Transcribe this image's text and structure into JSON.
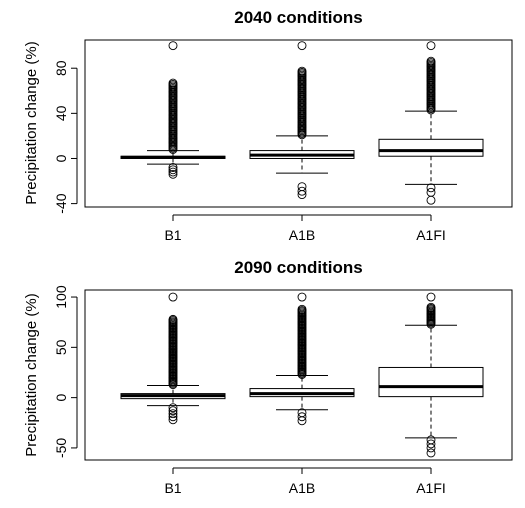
{
  "chart_data": [
    {
      "type": "boxplot",
      "title": "2040 conditions",
      "xlabel": "",
      "ylabel": "Precipitation change (%)",
      "categories": [
        "B1",
        "A1B",
        "A1FI"
      ],
      "ylim": [
        -43,
        105
      ],
      "yticks": [
        -40,
        0,
        40,
        80
      ],
      "yticklabels": [
        "-40",
        "0",
        "40",
        "80"
      ],
      "boxes": [
        {
          "label": "B1",
          "whisker_low": -5,
          "q1": 0,
          "median": 1,
          "q3": 2,
          "whisker_high": 7,
          "outliers_high_range": [
            8,
            67
          ],
          "outliers_low": [
            -8,
            -10,
            -12,
            -14
          ],
          "outlier_max": 100
        },
        {
          "label": "A1B",
          "whisker_low": -13,
          "q1": 0,
          "median": 3,
          "q3": 7,
          "whisker_high": 20,
          "outliers_high_range": [
            21,
            78
          ],
          "outliers_low": [
            -25,
            -29,
            -32
          ],
          "outlier_max": 100
        },
        {
          "label": "A1FI",
          "whisker_low": -23,
          "q1": 2,
          "median": 7,
          "q3": 17,
          "whisker_high": 42,
          "outliers_high_range": [
            43,
            87
          ],
          "outliers_low": [
            -26,
            -30,
            -37
          ],
          "outlier_max": 100
        }
      ]
    },
    {
      "type": "boxplot",
      "title": "2090 conditions",
      "xlabel": "",
      "ylabel": "Precipitation change (%)",
      "categories": [
        "B1",
        "A1B",
        "A1FI"
      ],
      "ylim": [
        -62,
        107
      ],
      "yticks": [
        -50,
        0,
        50,
        100
      ],
      "yticklabels": [
        "-50",
        "0",
        "50",
        "100"
      ],
      "boxes": [
        {
          "label": "B1",
          "whisker_low": -8,
          "q1": -1,
          "median": 2,
          "q3": 4,
          "whisker_high": 12,
          "outliers_high_range": [
            13,
            78
          ],
          "outliers_low": [
            -10,
            -13,
            -16,
            -19,
            -22
          ],
          "outlier_max": 100
        },
        {
          "label": "A1B",
          "whisker_low": -12,
          "q1": 1,
          "median": 4,
          "q3": 9,
          "whisker_high": 22,
          "outliers_high_range": [
            23,
            88
          ],
          "outliers_low": [
            -15,
            -19,
            -23
          ],
          "outlier_max": 100
        },
        {
          "label": "A1FI",
          "whisker_low": -40,
          "q1": 1,
          "median": 11,
          "q3": 30,
          "whisker_high": 72,
          "outliers_high_range": [
            73,
            90
          ],
          "outliers_low": [
            -42,
            -46,
            -50,
            -55
          ],
          "outlier_max": 100
        }
      ]
    }
  ]
}
